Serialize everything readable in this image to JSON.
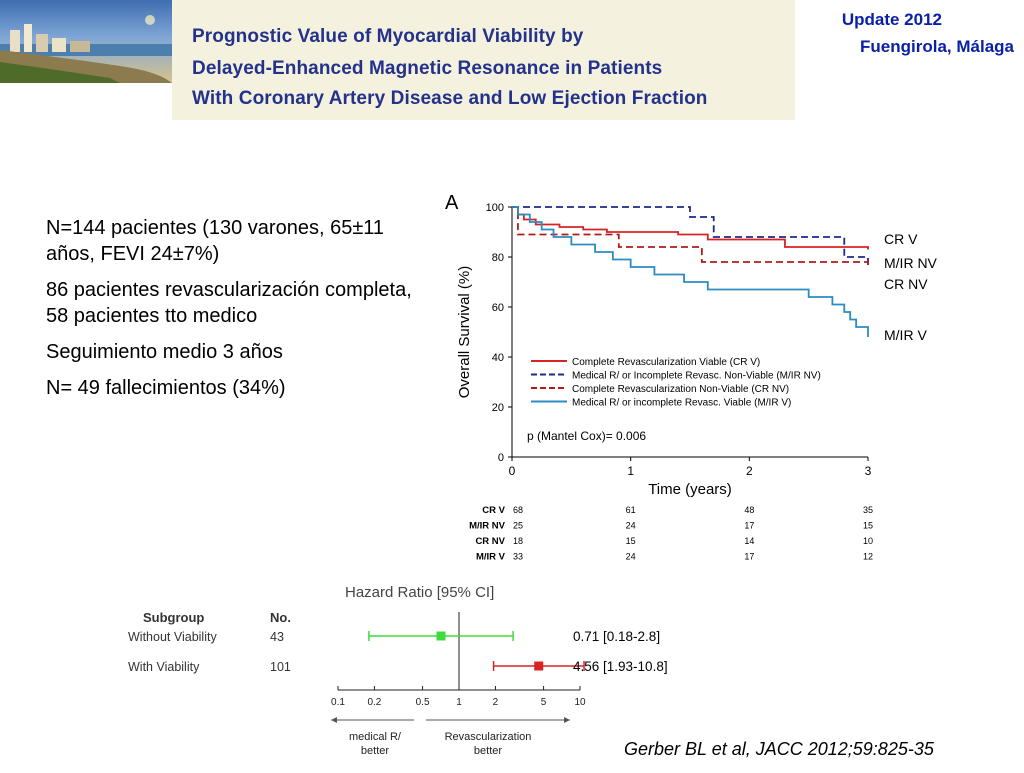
{
  "header": {
    "title_lines": [
      "Prognostic Value of Myocardial Viability by",
      "Delayed-Enhanced Magnetic Resonance in Patients",
      "With Coronary Artery Disease and Low Ejection Fraction"
    ],
    "update_lines": [
      "Update 2012",
      "Fuengirola, Málaga"
    ]
  },
  "bullets": [
    "N=144 pacientes (130 varones, 65±11 años, FEVI 24±7%)",
    "86 pacientes revascularización completa, 58 pacientes tto medico",
    "Seguimiento medio 3 años",
    "N= 49 fallecimientos (34%)"
  ],
  "citation": "Gerber BL et al, JACC 2012;59:825-35",
  "colors": {
    "red": "#d92323",
    "navy": "#1d2a8a",
    "darkred": "#b31b1b",
    "blue": "#2b8cc4",
    "green": "#3ddc3d",
    "title": "#23328a",
    "update": "#0a1fa8"
  },
  "chart_data": [
    {
      "type": "line",
      "panel_label": "A",
      "xlabel": "Time (years)",
      "ylabel": "Overall Survival (%)",
      "xlim": [
        0,
        3
      ],
      "ylim": [
        0,
        100
      ],
      "xticks": [
        0,
        1,
        2,
        3
      ],
      "yticks": [
        0,
        20,
        40,
        60,
        80,
        100
      ],
      "legend_position": "lower-center",
      "annotation": "p (Mantel Cox)= 0.006",
      "series": [
        {
          "name": "Complete Revascularization Viable (CR V)",
          "end_label": "CR V",
          "color": "#d92323",
          "dash": "solid",
          "x": [
            0,
            0.05,
            0.1,
            0.2,
            0.4,
            0.6,
            0.8,
            1.0,
            1.4,
            1.65,
            2.3,
            3.0
          ],
          "y": [
            100,
            97,
            95,
            93,
            92,
            91,
            90,
            90,
            89,
            87,
            84,
            83
          ]
        },
        {
          "name": "Medical R/ or Incomplete Revasc. Non-Viable (M/IR NV)",
          "end_label": "M/IR NV",
          "color": "#1d2a8a",
          "dash": "dashed",
          "x": [
            0,
            1.25,
            1.5,
            1.7,
            2.8,
            3.0
          ],
          "y": [
            100,
            100,
            96,
            88,
            80,
            76
          ]
        },
        {
          "name": "Complete Revascularization Non-Viable (CR NV)",
          "end_label": "CR NV",
          "color": "#b31b1b",
          "dash": "dashed",
          "x": [
            0,
            0.05,
            0.9,
            1.6,
            2.2,
            3.0
          ],
          "y": [
            100,
            89,
            84,
            78,
            78,
            77
          ]
        },
        {
          "name": "Medical R/ or incomplete Revasc. Viable (M/IR V)",
          "end_label": "M/IR V",
          "color": "#2b8cc4",
          "dash": "solid",
          "x": [
            0,
            0.05,
            0.15,
            0.25,
            0.35,
            0.5,
            0.7,
            0.85,
            1.0,
            1.2,
            1.45,
            1.65,
            2.5,
            2.7,
            2.8,
            2.85,
            2.9,
            3.0
          ],
          "y": [
            100,
            97,
            94,
            91,
            88,
            85,
            82,
            79,
            76,
            73,
            70,
            67,
            64,
            61,
            58,
            55,
            52,
            48
          ]
        }
      ],
      "risk_table": {
        "columns": [
          0,
          1,
          2,
          3
        ],
        "rows": [
          {
            "label": "CR V",
            "values": [
              68,
              61,
              48,
              35
            ]
          },
          {
            "label": "M/IR NV",
            "values": [
              25,
              24,
              17,
              15
            ]
          },
          {
            "label": "CR NV",
            "values": [
              18,
              15,
              14,
              10
            ]
          },
          {
            "label": "M/IR V",
            "values": [
              33,
              24,
              17,
              12
            ]
          }
        ]
      }
    },
    {
      "type": "forest",
      "title": "Hazard Ratio [95% CI]",
      "scale": "log",
      "xticks": [
        0.1,
        0.2,
        0.5,
        1,
        2,
        5,
        10
      ],
      "xtick_labels": [
        "0.1",
        "0.2",
        "0.5",
        "1",
        "2",
        "5",
        "10"
      ],
      "headers": {
        "subgroup": "Subgroup",
        "no": "No."
      },
      "rows": [
        {
          "subgroup": "Without Viability",
          "no": 43,
          "hr": 0.71,
          "ci": [
            0.18,
            2.8
          ],
          "label": "0.71 [0.18-2.8]",
          "color": "#3ddc3d"
        },
        {
          "subgroup": "With Viability",
          "no": 101,
          "hr": 4.56,
          "ci": [
            1.93,
            10.8
          ],
          "label": "4.56 [1.93-10.8]",
          "color": "#d92323"
        }
      ],
      "direction_labels": {
        "left": "medical R/ better",
        "right": "Revascularization better"
      }
    }
  ]
}
